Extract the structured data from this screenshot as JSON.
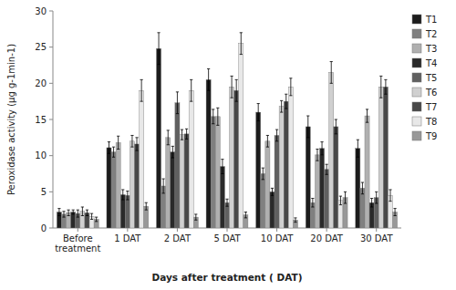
{
  "chart_data": {
    "type": "bar",
    "xlabel": "Days after treatment ( DAT)",
    "ylabel": "Peroxidase activity (µg g-1min-1)",
    "categories": [
      "Before\ntreatment",
      "1 DAT",
      "2 DAT",
      "5 DAT",
      "10 DAT",
      "20 DAT",
      "30 DAT"
    ],
    "series": [
      {
        "name": "T1",
        "color": "#1c1c1c",
        "values": [
          2.2,
          11.1,
          24.8,
          20.5,
          16.0,
          14.0,
          11.0
        ],
        "errors": [
          0.5,
          0.8,
          2.2,
          1.5,
          1.2,
          1.5,
          1.2
        ]
      },
      {
        "name": "T2",
        "color": "#808080",
        "values": [
          1.9,
          10.5,
          5.8,
          15.4,
          7.5,
          3.5,
          5.5
        ],
        "errors": [
          0.4,
          0.7,
          1.0,
          1.0,
          0.8,
          0.6,
          0.8
        ]
      },
      {
        "name": "T3",
        "color": "#b0b0b0",
        "values": [
          2.1,
          11.8,
          12.5,
          15.4,
          12.0,
          10.1,
          15.5
        ],
        "errors": [
          0.4,
          0.9,
          1.0,
          1.2,
          0.8,
          0.8,
          0.9
        ]
      },
      {
        "name": "T4",
        "color": "#2a2a2a",
        "values": [
          2.2,
          4.6,
          10.5,
          8.5,
          5.0,
          11.0,
          3.5
        ],
        "errors": [
          0.3,
          0.7,
          0.8,
          1.0,
          0.5,
          0.9,
          0.6
        ]
      },
      {
        "name": "T5",
        "color": "#606060",
        "values": [
          2.0,
          4.5,
          17.3,
          3.5,
          12.8,
          8.1,
          4.2
        ],
        "errors": [
          0.5,
          0.6,
          1.5,
          0.5,
          0.8,
          0.7,
          0.8
        ]
      },
      {
        "name": "T6",
        "color": "#d0d0d0",
        "values": [
          2.3,
          12.0,
          12.9,
          19.5,
          16.8,
          21.5,
          19.5
        ],
        "errors": [
          0.6,
          0.8,
          0.7,
          1.5,
          0.8,
          1.5,
          1.5
        ]
      },
      {
        "name": "T7",
        "color": "#484848",
        "values": [
          2.1,
          11.6,
          13.0,
          19.0,
          17.5,
          14.0,
          19.5
        ],
        "errors": [
          0.4,
          0.9,
          0.7,
          1.5,
          1.0,
          1.0,
          1.0
        ]
      },
      {
        "name": "T8",
        "color": "#e8e8e8",
        "values": [
          1.6,
          19.0,
          19.0,
          25.5,
          19.5,
          3.8,
          4.5
        ],
        "errors": [
          0.4,
          1.5,
          1.5,
          1.5,
          1.2,
          0.6,
          0.8
        ]
      },
      {
        "name": "T9",
        "color": "#989898",
        "values": [
          1.2,
          3.0,
          1.5,
          1.8,
          1.1,
          4.2,
          2.2
        ],
        "errors": [
          0.3,
          0.5,
          0.4,
          0.4,
          0.3,
          0.8,
          0.5
        ]
      }
    ],
    "ylim": [
      0,
      30
    ],
    "yticks": [
      0,
      5,
      10,
      15,
      20,
      25,
      30
    ],
    "grid": false,
    "legend": "right"
  }
}
